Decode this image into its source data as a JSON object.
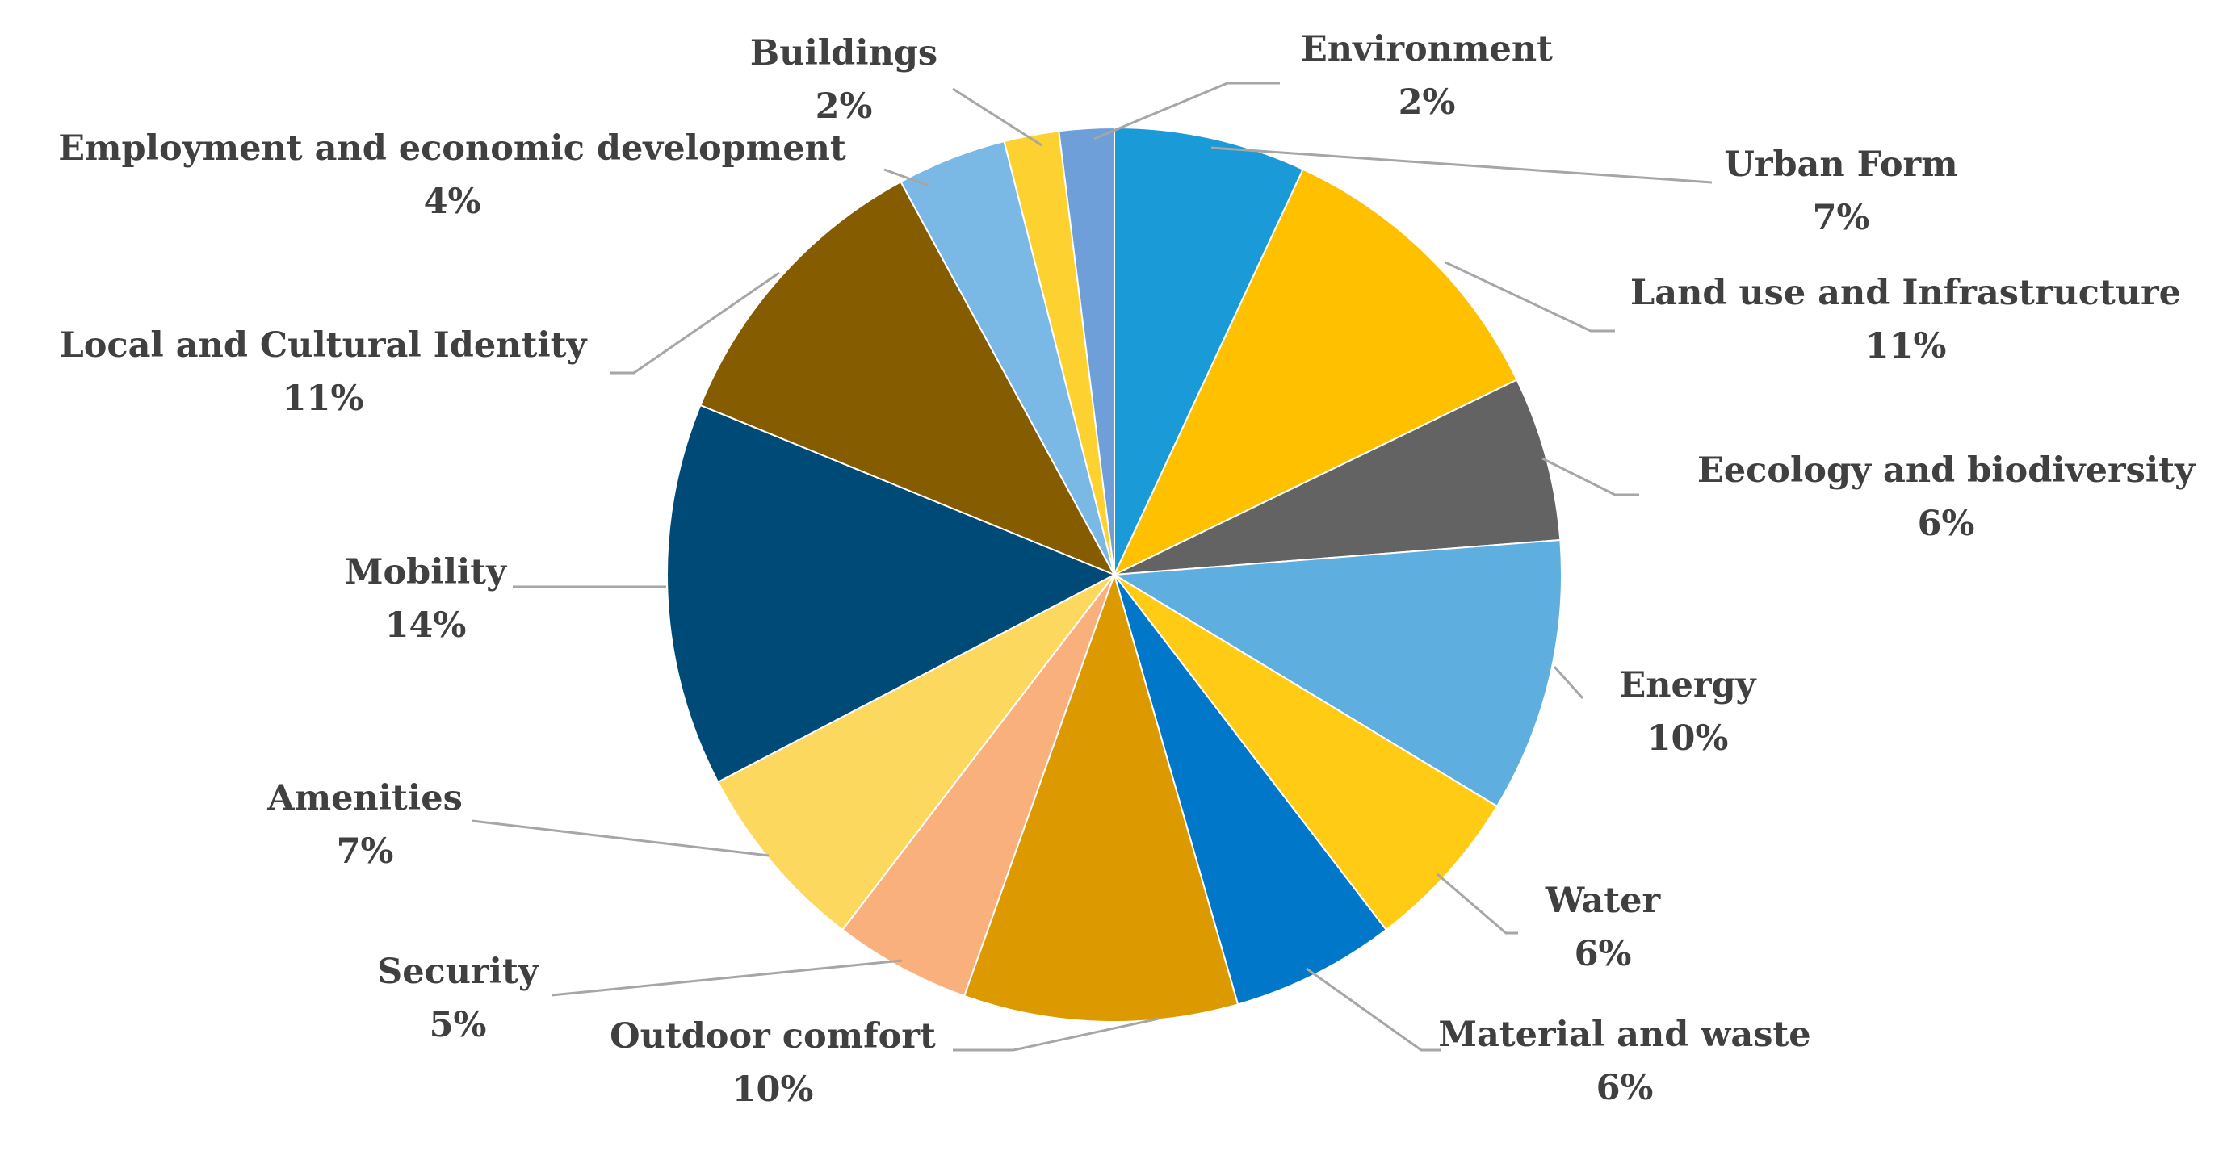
{
  "chart_data": {
    "type": "pie",
    "title": "",
    "start_angle_deg": 0,
    "direction": "clockwise",
    "slices": [
      {
        "label": "Urban Form",
        "value": 7,
        "value_label": "7%",
        "color": "#1a9ad6"
      },
      {
        "label": "Land use and Infrastructure",
        "value": 11,
        "value_label": "11%",
        "color": "#ffc000"
      },
      {
        "label": "Eecology and biodiversity",
        "value": 6,
        "value_label": "6%",
        "color": "#636363"
      },
      {
        "label": "Energy",
        "value": 10,
        "value_label": "10%",
        "color": "#5eaee0"
      },
      {
        "label": "Water",
        "value": 6,
        "value_label": "6%",
        "color": "#ffcb14"
      },
      {
        "label": "Material and waste",
        "value": 6,
        "value_label": "6%",
        "color": "#0077c8"
      },
      {
        "label": "Outdoor comfort",
        "value": 10,
        "value_label": "10%",
        "color": "#dc9a00"
      },
      {
        "label": "Security",
        "value": 5,
        "value_label": "5%",
        "color": "#f9b07c"
      },
      {
        "label": "Amenities",
        "value": 7,
        "value_label": "7%",
        "color": "#fdd85f"
      },
      {
        "label": "Mobility",
        "value": 14,
        "value_label": "14%",
        "color": "#004a78"
      },
      {
        "label": "Local and Cultural Identity",
        "value": 11,
        "value_label": "11%",
        "color": "#865c00"
      },
      {
        "label": "Employment and economic development",
        "value": 4,
        "value_label": "4%",
        "color": "#7ab9e6"
      },
      {
        "label": "Buildings",
        "value": 2,
        "value_label": "2%",
        "color": "#fdd230"
      },
      {
        "label": "Environment",
        "value": 2,
        "value_label": "2%",
        "color": "#6f9fd8"
      }
    ],
    "legend": "none",
    "data_labels": "outside with leader lines"
  }
}
